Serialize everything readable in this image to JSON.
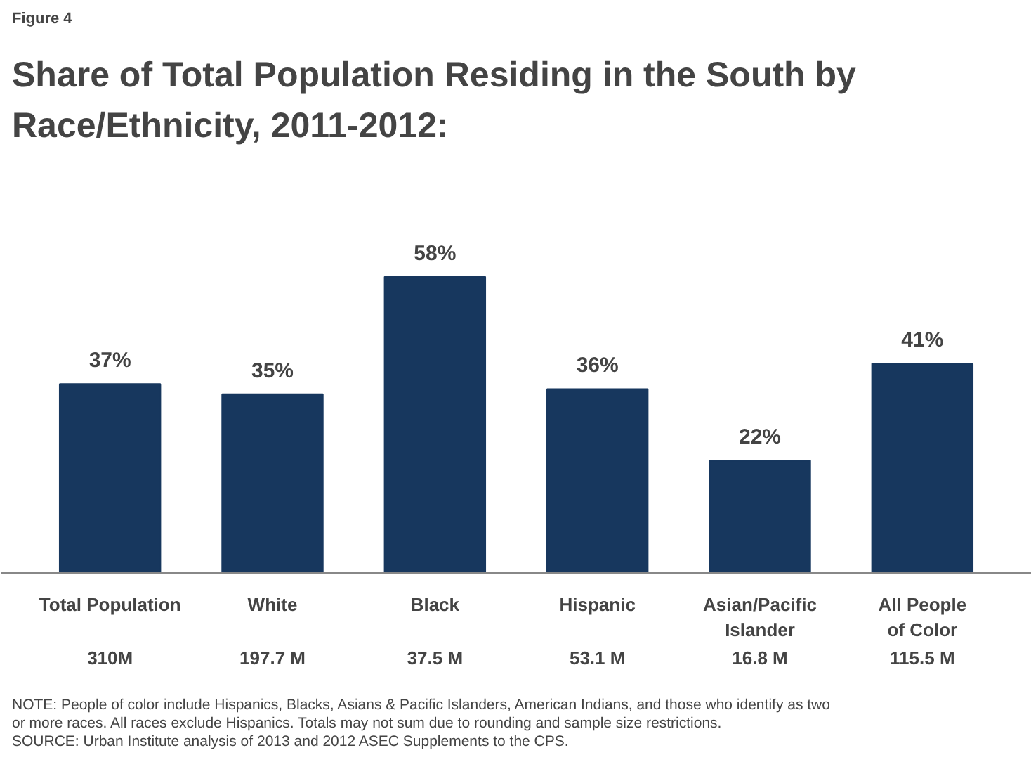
{
  "chart_data": {
    "type": "bar",
    "title": "Share of Total Population Residing in the South by Race/Ethnicity, 2011-2012:",
    "subtitle": "Figure 4",
    "categories": [
      "Total Population",
      "White",
      "Black",
      "Hispanic",
      "Asian/Pacific Islander",
      "All People of Color"
    ],
    "values": [
      37,
      35,
      58,
      36,
      22,
      41
    ],
    "color": "#17375e",
    "data_labels": true,
    "value_labels": [
      "37%",
      "35%",
      "58%",
      "36%",
      "22%",
      "41%"
    ],
    "grid": false,
    "annotations": [
      "310M",
      "197.7 M",
      "37.5 M",
      "53.1 M",
      "16.8 M",
      "115.5 M",
      "NOTE: People of color include Hispanics, Blacks, Asians & Pacific Islanders,  American Indians, and those  who identify as two or more races. All races exclude Hispanics. Totals may not sum due to rounding and sample size restrictions.",
      "SOURCE: Urban Institute analysis of 2013 and 2012 ASEC Supplements to the CPS."
    ]
  }
}
